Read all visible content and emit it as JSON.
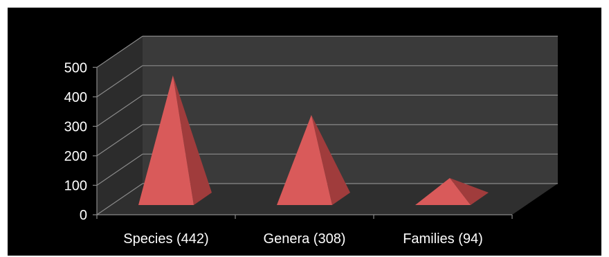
{
  "chart_data": {
    "type": "bar",
    "style": "3d-pyramid",
    "categories": [
      "Species (442)",
      "Genera (308)",
      "Families (94)"
    ],
    "values": [
      442,
      308,
      94
    ],
    "ylim": [
      0,
      500
    ],
    "yticks": [
      0,
      100,
      200,
      300,
      400,
      500
    ],
    "grid": true,
    "legend": "none",
    "title": "",
    "xlabel": "",
    "ylabel": ""
  },
  "colors": {
    "background": "#000000",
    "back_wall": "#3a3a3a",
    "side_wall": "#2c2c2c",
    "floor": "#2f2f2f",
    "gridline": "#8a8a8a",
    "pyramid_front": "#d95a5a",
    "pyramid_side": "#a03c3c",
    "axis_text": "#ffffff"
  }
}
